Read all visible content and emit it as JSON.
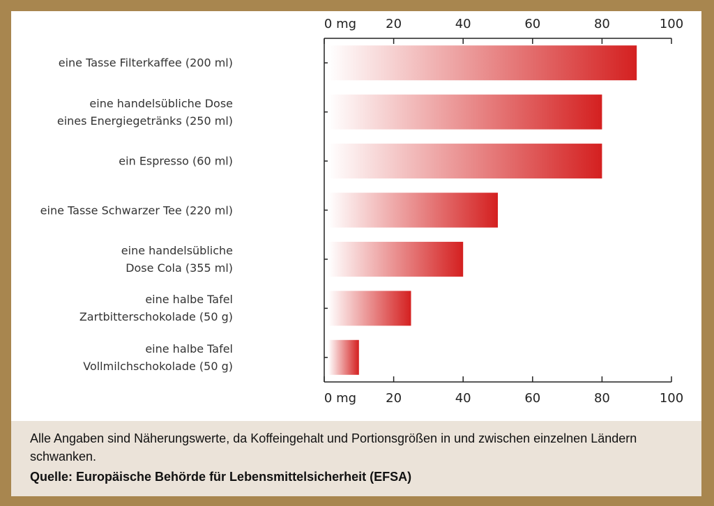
{
  "chart_data": {
    "type": "hbar",
    "categories": [
      "eine Tasse Filterkaffee (200 ml)",
      "eine handelsübliche Dose\neines Energiegetränks (250 ml)",
      "ein Espresso (60 ml)",
      "eine Tasse Schwarzer Tee (220 ml)",
      "eine handelsübliche\nDose Cola (355 ml)",
      "eine halbe Tafel\nZartbitterschokolade (50 g)",
      "eine halbe Tafel\nVollmilchschokolade (50 g)"
    ],
    "values": [
      90,
      80,
      80,
      50,
      40,
      25,
      10
    ],
    "color": "#d42020",
    "xlim": [
      0,
      100
    ],
    "xticks": [
      {
        "value": 0,
        "label": "0 mg"
      },
      20,
      40,
      60,
      80,
      100
    ],
    "note": "Alle Angaben sind Näherungswerte, da Koffeingehalt und Portionsgrößen in und zwischen einzelnen Ländern schwanken.",
    "source": "Quelle: Europäische Behörde für Lebensmittelsicherheit (EFSA)"
  }
}
